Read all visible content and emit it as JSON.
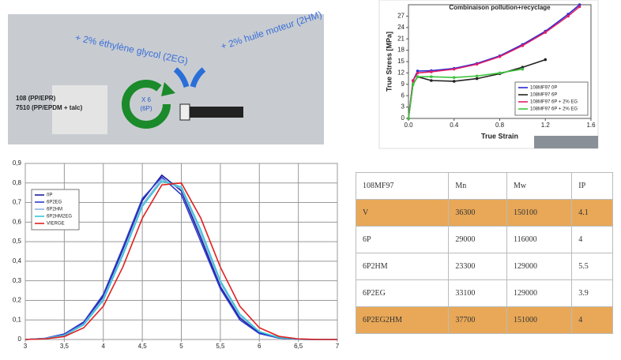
{
  "diagram": {
    "texts": [
      "+ 2% éthylène glycol (2EG)",
      "+ 2% huile moteur (2HM)",
      "108 (PP/EPR)",
      "7510 (PP/EPDM + talc)",
      "X 6",
      "(6P)"
    ]
  },
  "chart_data": [
    {
      "type": "line",
      "title": "Combinaison pollution+recyclage",
      "xlabel": "True Strain",
      "ylabel": "True Stress [MPa]",
      "x": [
        0,
        0.04,
        0.08,
        0.2,
        0.4,
        0.6,
        0.8,
        1.0,
        1.2,
        1.4,
        1.5
      ],
      "series": [
        {
          "name": "108MF97 0P",
          "color": "#2a2ad0",
          "values": [
            0,
            10,
            12.5,
            12.6,
            13.2,
            14.5,
            16.5,
            19.5,
            23,
            27.5,
            30
          ]
        },
        {
          "name": "108MF97 6P",
          "color": "#222222",
          "values": [
            0,
            9,
            11,
            10,
            9.8,
            10.5,
            11.8,
            13.5,
            15.5,
            null,
            null
          ]
        },
        {
          "name": "108MF97 6P + 2% EG",
          "color": "#e0206a",
          "values": [
            0,
            10,
            12,
            12.3,
            13,
            14.3,
            16.3,
            19.2,
            22.7,
            27,
            29.5
          ]
        },
        {
          "name": "108MF97 6P + 2% EG",
          "color": "#3cc43c",
          "values": [
            0,
            9,
            11,
            11,
            10.8,
            11.2,
            12,
            13,
            null,
            null,
            null
          ]
        }
      ],
      "xlim": [
        0,
        1.6
      ],
      "xticks": [
        {
          "value": 0,
          "label": "0.0"
        },
        0.4,
        0.8,
        1.2,
        1.6
      ],
      "ylim": [
        0,
        30
      ],
      "yticks": [
        0,
        3,
        6,
        9,
        12,
        15,
        18,
        21,
        24,
        27
      ],
      "grid": false,
      "legend": "lower right",
      "markers": true
    },
    {
      "type": "line",
      "x": [
        3,
        3.25,
        3.5,
        3.75,
        4,
        4.25,
        4.5,
        4.75,
        5,
        5.25,
        5.5,
        5.75,
        6,
        6.25,
        6.5,
        6.75,
        7
      ],
      "series": [
        {
          "name": "0P",
          "color": "#1a1a9a",
          "values": [
            0,
            0.005,
            0.024,
            0.084,
            0.22,
            0.46,
            0.71,
            0.84,
            0.76,
            0.52,
            0.27,
            0.11,
            0.033,
            0.008,
            0.001,
            0,
            0
          ]
        },
        {
          "name": "6P2EG",
          "color": "#2c3ccc",
          "values": [
            0,
            0.006,
            0.028,
            0.09,
            0.23,
            0.47,
            0.72,
            0.83,
            0.74,
            0.5,
            0.26,
            0.1,
            0.03,
            0.007,
            0.001,
            0,
            0
          ]
        },
        {
          "name": "6P2HM",
          "color": "#8fb0e0",
          "values": [
            0,
            0.005,
            0.022,
            0.08,
            0.21,
            0.44,
            0.69,
            0.82,
            0.77,
            0.54,
            0.29,
            0.12,
            0.04,
            0.01,
            0.002,
            0,
            0
          ]
        },
        {
          "name": "6P2HM2EG",
          "color": "#33c6d8",
          "values": [
            0,
            0.004,
            0.02,
            0.075,
            0.2,
            0.43,
            0.68,
            0.81,
            0.78,
            0.56,
            0.3,
            0.13,
            0.04,
            0.01,
            0.002,
            0,
            0
          ]
        },
        {
          "name": "VIERGE",
          "color": "#e02020",
          "values": [
            0,
            0.003,
            0.015,
            0.06,
            0.17,
            0.37,
            0.62,
            0.79,
            0.8,
            0.62,
            0.37,
            0.17,
            0.06,
            0.016,
            0.003,
            0,
            0
          ]
        }
      ],
      "xlim": [
        3,
        7
      ],
      "xticks": [
        3,
        {
          "value": 3.5,
          "label": "3,5"
        },
        4,
        {
          "value": 4.5,
          "label": "4,5"
        },
        5,
        {
          "value": 5.5,
          "label": "5,5"
        },
        6,
        {
          "value": 6.5,
          "label": "6,5"
        },
        7
      ],
      "ylim": [
        0,
        0.9
      ],
      "yticks": [
        0,
        {
          "value": 0.1,
          "label": "0,1"
        },
        {
          "value": 0.2,
          "label": "0,2"
        },
        {
          "value": 0.3,
          "label": "0,3"
        },
        {
          "value": 0.4,
          "label": "0,4"
        },
        {
          "value": 0.5,
          "label": "0,5"
        },
        {
          "value": 0.6,
          "label": "0,6"
        },
        {
          "value": 0.7,
          "label": "0,7"
        },
        {
          "value": 0.8,
          "label": "0,8"
        },
        {
          "value": 0.9,
          "label": "0,9"
        }
      ],
      "grid": true,
      "legend": "upper left",
      "markers": false
    }
  ],
  "table": {
    "rows": [
      [
        "108MF97",
        "Mn",
        "Mw",
        "IP"
      ],
      [
        "V",
        "36300",
        "150100",
        "4.1"
      ],
      [
        "6P",
        "29000",
        "116000",
        "4"
      ],
      [
        "6P2HM",
        "23300",
        "129000",
        "5.5"
      ],
      [
        "6P2EG",
        "33100",
        "129000",
        "3.9"
      ],
      [
        "6P2EG2HM",
        "37700",
        "151000",
        "4"
      ]
    ]
  }
}
